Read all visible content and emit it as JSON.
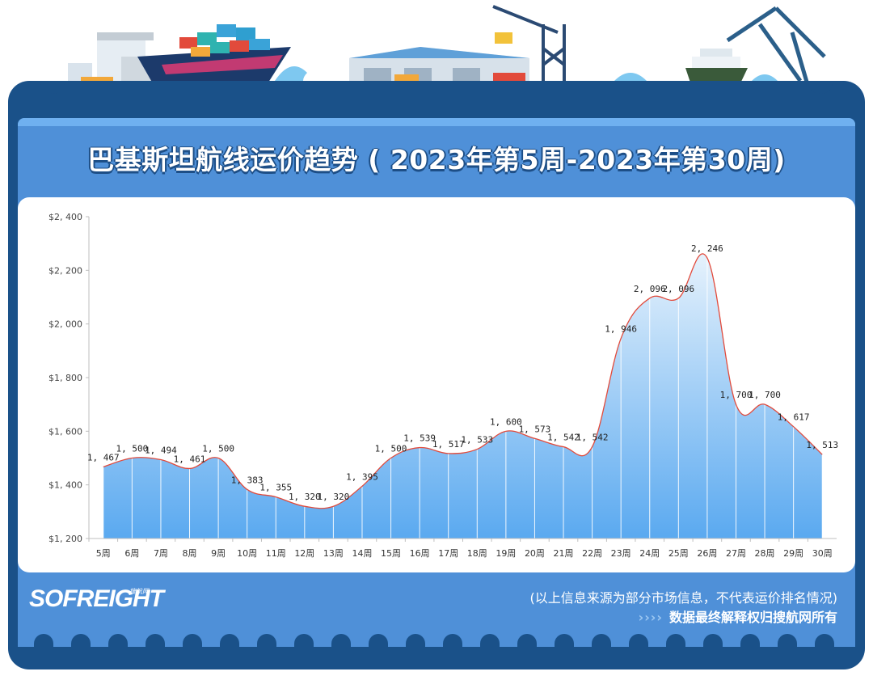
{
  "title": "巴基斯坦航线运价趋势 ( 2023年第5周-2023年第30周)",
  "footer": {
    "logo": "SOFREIGHT",
    "logo_sub": "搜航网",
    "note_source": "(以上信息来源为部分市场信息，不代表运价排名情况)",
    "note_rights": "数据最终解释权归搜航网所有",
    "chevrons": "››››"
  },
  "colors": {
    "frame": "#1a5189",
    "inner": "#4f90d8",
    "line": "#e24a3b",
    "area_top": "#d9ecfb",
    "area_bottom": "#5aa9f0"
  },
  "chart_data": {
    "type": "area",
    "categories": [
      "5周",
      "6周",
      "7周",
      "8周",
      "9周",
      "10周",
      "11周",
      "12周",
      "13周",
      "14周",
      "15周",
      "16周",
      "17周",
      "18周",
      "19周",
      "20周",
      "21周",
      "22周",
      "23周",
      "24周",
      "25周",
      "26周",
      "27周",
      "28周",
      "29周",
      "30周"
    ],
    "values": [
      1467,
      1500,
      1494,
      1461,
      1500,
      1383,
      1355,
      1320,
      1320,
      1395,
      1500,
      1539,
      1517,
      1533,
      1600,
      1573,
      1542,
      1542,
      1946,
      2096,
      2096,
      2246,
      1700,
      1700,
      1617,
      1513
    ],
    "data_labels": [
      "1, 467",
      "1, 500",
      "1, 494",
      "1, 461",
      "1, 500",
      "1, 383",
      "1, 355",
      "1, 320",
      "1, 320",
      "1, 395",
      "1, 500",
      "1, 539",
      "1, 517",
      "1, 533",
      "1, 600",
      "1, 573",
      "1, 542",
      "1, 542",
      "1, 946",
      "2, 096",
      "2, 096",
      "2, 246",
      "1, 700",
      "1, 700",
      "1, 617",
      "1, 513"
    ],
    "yticks": [
      "$1, 200",
      "$1, 400",
      "$1, 600",
      "$1, 800",
      "$2, 000",
      "$2, 200",
      "$2, 400"
    ],
    "ylim": [
      1200,
      2400
    ],
    "grid": false,
    "title": "",
    "xlabel": "",
    "ylabel": ""
  }
}
